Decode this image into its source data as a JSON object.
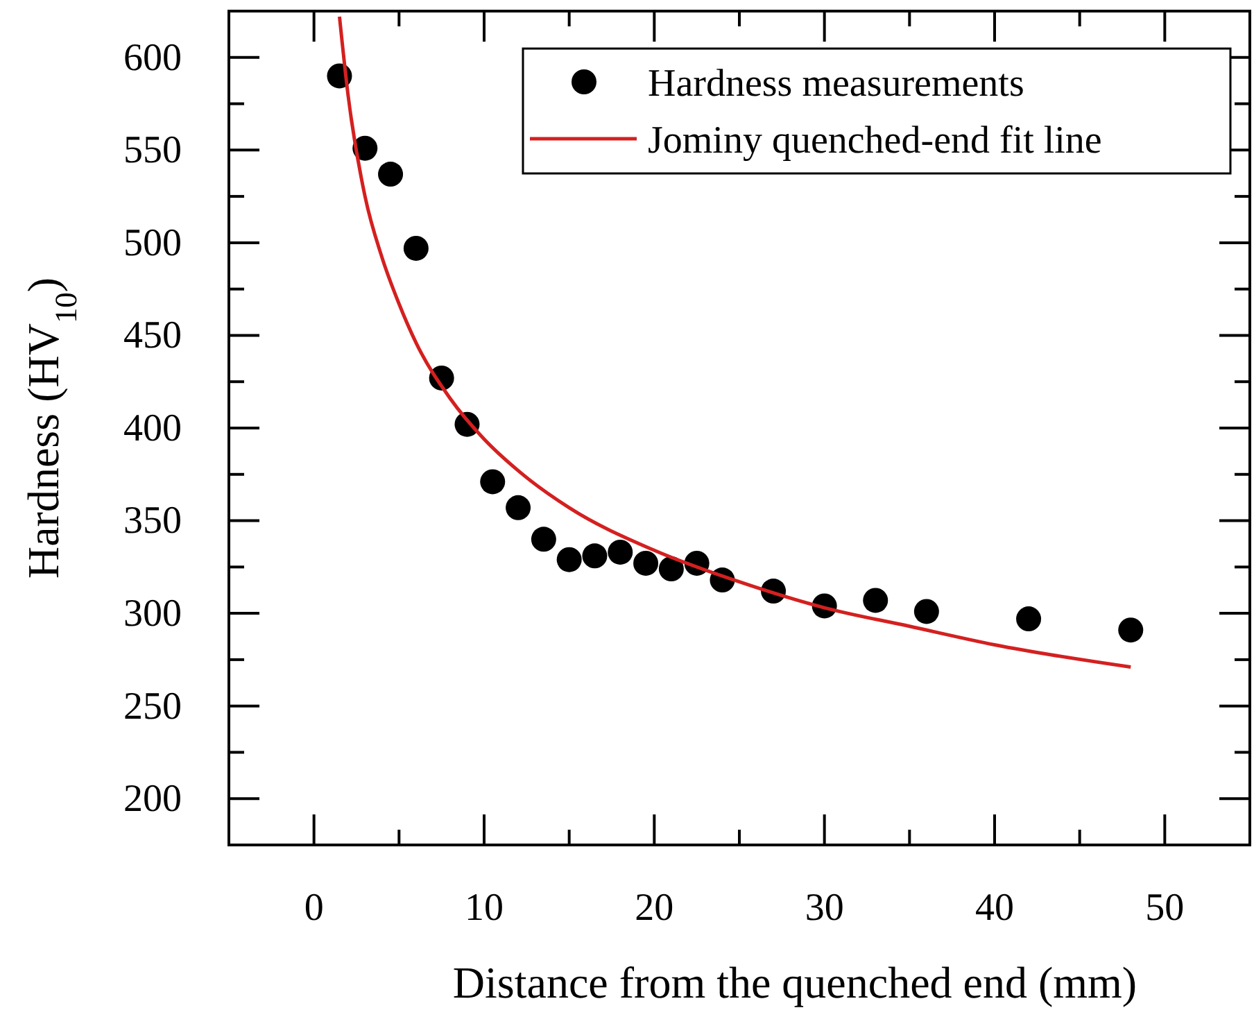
{
  "chart_data": {
    "type": "scatter",
    "xlabel": "Distance from the quenched end (mm)",
    "ylabel": "Hardness (HV$_{10}$)",
    "xlim": [
      -5,
      55
    ],
    "xticks": [
      0,
      10,
      20,
      30,
      40,
      50
    ],
    "ylim": [
      175,
      625
    ],
    "yticks": [
      200,
      250,
      300,
      350,
      400,
      450,
      500,
      550,
      600
    ],
    "grid": false,
    "legend": "top right",
    "marker": "circle",
    "series": [
      {
        "name": "Hardness measurements",
        "type": "scatter",
        "color": "#000000",
        "x": [
          1.5,
          3,
          4.5,
          6,
          7.5,
          9,
          10.5,
          12,
          13.5,
          15,
          16.5,
          18,
          19.5,
          21,
          22.5,
          24,
          27,
          30,
          33,
          36,
          42,
          48
        ],
        "values": [
          590,
          551,
          537,
          497,
          427,
          402,
          371,
          357,
          340,
          329,
          331,
          333,
          327,
          324,
          327,
          318,
          312,
          304,
          307,
          301,
          297,
          291
        ]
      },
      {
        "name": "Jominy quenched-end fit line",
        "type": "line",
        "color": "#d42020",
        "marker": "none",
        "line_style": "solid",
        "x": [
          1.5,
          2,
          3,
          4,
          5,
          6,
          8,
          10,
          12,
          15,
          20,
          25,
          30,
          35,
          40,
          48
        ],
        "values": [
          622,
          580,
          525,
          492,
          467,
          446,
          416,
          394,
          377,
          357,
          334,
          317,
          303,
          293,
          283,
          271
        ]
      }
    ]
  }
}
